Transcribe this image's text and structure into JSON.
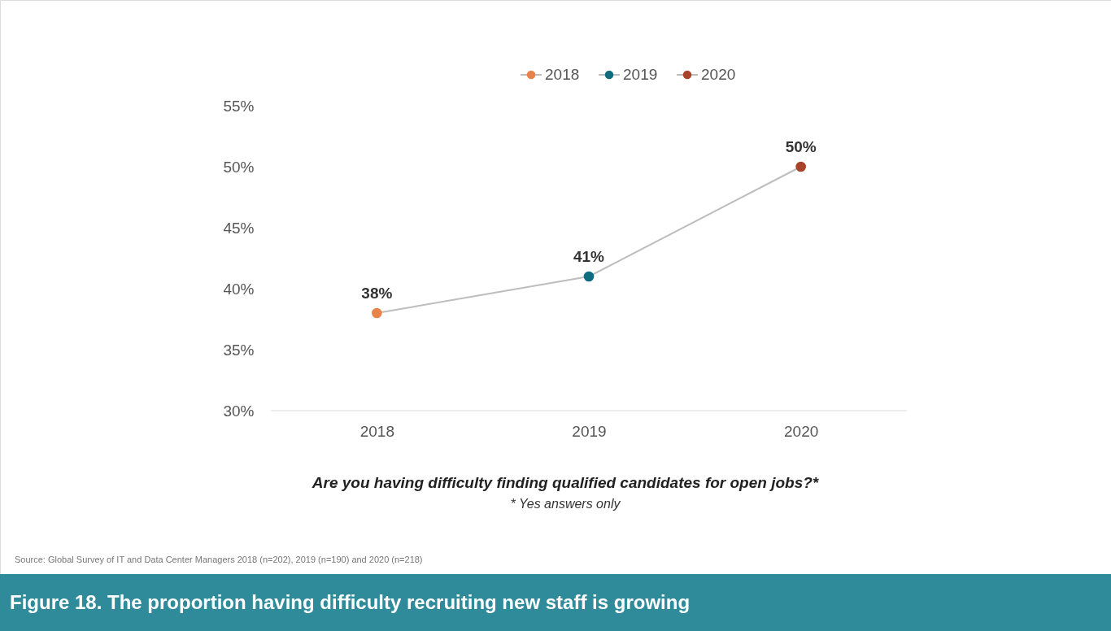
{
  "chart_data": {
    "type": "line",
    "title": "Figure 18. The proportion having difficulty recruiting new staff is growing",
    "categories": [
      "2018",
      "2019",
      "2020"
    ],
    "series": [
      {
        "marker": "none",
        "color": "#bdbdbd",
        "values": [
          38,
          41,
          50
        ],
        "value_labels": [
          "38%",
          "41%",
          "50%"
        ]
      },
      {
        "type": "scatter",
        "name": "2018",
        "color": "#e8834a",
        "values": [
          38,
          null,
          null
        ]
      },
      {
        "type": "scatter",
        "name": "2019",
        "color": "#0f6b80",
        "values": [
          null,
          41,
          null
        ]
      },
      {
        "type": "scatter",
        "name": "2020",
        "color": "#a8432a",
        "values": [
          null,
          null,
          50
        ]
      }
    ],
    "ylim": [
      30,
      55
    ],
    "yticks": [
      {
        "value": 30,
        "label": "30%"
      },
      {
        "value": 35,
        "label": "35%"
      },
      {
        "value": 40,
        "label": "40%"
      },
      {
        "value": 45,
        "label": "45%"
      },
      {
        "value": 50,
        "label": "50%"
      },
      {
        "value": 55,
        "label": "55%"
      }
    ],
    "grid": false,
    "legend": "top",
    "marker": "circle",
    "annotations": [
      "Are you having difficulty finding qualified candidates for open jobs?*",
      "* Yes answers only",
      "Source: Global Survey of IT and Data Center Managers 2018 (n=202), 2019 (n=190) and 2020 (n=218)"
    ]
  }
}
